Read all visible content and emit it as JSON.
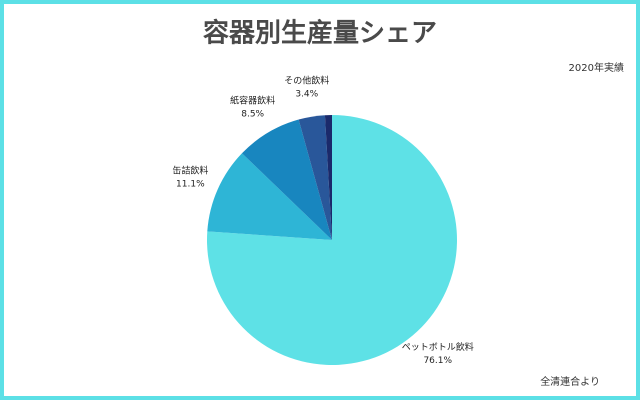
{
  "chart_data": {
    "type": "pie",
    "title": "容器別生産量シェア",
    "subtitle": "2020年実績",
    "source": "全清連合より",
    "categories": [
      "ペットボトル飲料",
      "缶詰飲料",
      "紙容器飲料",
      "その他飲料",
      null
    ],
    "values": [
      76.1,
      11.1,
      8.5,
      3.4,
      0.9
    ],
    "value_labels": [
      "76.1%",
      "11.1%",
      "8.5%",
      "3.4%",
      null
    ],
    "colors": [
      "#5ee1e6",
      "#2eb5d6",
      "#1886bf",
      "#29579a",
      "#1b2a6b"
    ]
  }
}
